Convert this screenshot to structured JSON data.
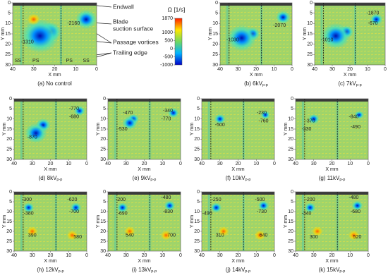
{
  "chart_data": [
    {
      "type": "contour",
      "caption": "(a)  No control",
      "xlabel": "X mm",
      "ylabel": "Y mm",
      "xlim": [
        40,
        0
      ],
      "ylim": [
        30,
        0
      ],
      "xticks": [
        40,
        30,
        20,
        10,
        0
      ],
      "yticks": [
        0,
        5,
        10,
        15,
        20,
        25,
        30
      ],
      "labels": [
        -2160,
        -1310
      ]
    },
    {
      "type": "contour",
      "caption": "(b)  6kV",
      "caption_sub": "p-p",
      "xlabel": "X mm",
      "ylabel": "Y mm",
      "xlim": [
        40,
        0
      ],
      "ylim": [
        30,
        0
      ],
      "xticks": [
        40,
        30,
        20,
        10,
        0
      ],
      "yticks": [
        0,
        5,
        10,
        15,
        20,
        25,
        30
      ],
      "labels": [
        -2070,
        -1030
      ]
    },
    {
      "type": "contour",
      "caption": "(c)  7kV",
      "caption_sub": "p-p",
      "xlabel": "X mm",
      "ylabel": "Y mm",
      "xlim": [
        40,
        0
      ],
      "ylim": [
        30,
        0
      ],
      "xticks": [
        40,
        30,
        20,
        10,
        0
      ],
      "yticks": [
        0,
        5,
        10,
        15,
        20,
        25,
        30
      ],
      "labels": [
        -1870,
        -670,
        -1010
      ]
    },
    {
      "type": "contour",
      "caption": "(d)  8kV",
      "caption_sub": "p-p",
      "xlabel": "X mm",
      "ylabel": "Y mm",
      "xlim": [
        40,
        0
      ],
      "ylim": [
        30,
        0
      ],
      "xticks": [
        40,
        30,
        20,
        10,
        0
      ],
      "yticks": [
        0,
        5,
        10,
        15,
        20,
        25,
        30
      ],
      "labels": [
        -770,
        -680,
        -870
      ]
    },
    {
      "type": "contour",
      "caption": "(e)  9kV",
      "caption_sub": "p-p",
      "xlabel": "X mm",
      "ylabel": "Y mm",
      "xlim": [
        40,
        0
      ],
      "ylim": [
        30,
        0
      ],
      "xticks": [
        40,
        30,
        20,
        10,
        0
      ],
      "yticks": [
        0,
        5,
        10,
        15,
        20,
        25,
        30
      ],
      "labels": [
        -340,
        -470,
        -770,
        -530
      ]
    },
    {
      "type": "contour",
      "caption": "(f)  10kV",
      "caption_sub": "p-p",
      "xlabel": "X mm",
      "ylabel": "Y mm",
      "xlim": [
        40,
        0
      ],
      "ylim": [
        30,
        0
      ],
      "xticks": [
        40,
        30,
        20,
        10,
        0
      ],
      "yticks": [
        0,
        5,
        10,
        15,
        20,
        25,
        30
      ],
      "labels": [
        -230,
        -760,
        -500
      ]
    },
    {
      "type": "contour",
      "caption": "(g)  11kV",
      "caption_sub": "p-p",
      "xlabel": "X mm",
      "ylabel": "Y mm",
      "xlim": [
        40,
        0
      ],
      "ylim": [
        30,
        0
      ],
      "xticks": [
        40,
        30,
        20,
        10,
        0
      ],
      "yticks": [
        0,
        5,
        10,
        15,
        20,
        25,
        30
      ],
      "labels": [
        -370,
        -840,
        -330,
        -490
      ]
    },
    {
      "type": "contour",
      "caption": "(h)  12kV",
      "caption_sub": "p-p",
      "xlabel": "X mm",
      "ylabel": "Y mm",
      "xlim": [
        40,
        0
      ],
      "ylim": [
        30,
        0
      ],
      "xticks": [
        40,
        30,
        20,
        10,
        0
      ],
      "yticks": [
        0,
        5,
        10,
        15,
        20,
        25,
        30
      ],
      "labels": [
        -300,
        -620,
        -380,
        -700,
        390,
        580
      ]
    },
    {
      "type": "contour",
      "caption": "(i)  13kV",
      "caption_sub": "p-p",
      "xlabel": "X mm",
      "ylabel": "Y mm",
      "xlim": [
        40,
        0
      ],
      "ylim": [
        30,
        0
      ],
      "xticks": [
        40,
        30,
        20,
        10,
        0
      ],
      "yticks": [
        0,
        5,
        10,
        15,
        20,
        25,
        30
      ],
      "labels": [
        -200,
        -480,
        -690,
        -830,
        540,
        700
      ]
    },
    {
      "type": "contour",
      "caption": "(j)  14kV",
      "caption_sub": "p-p",
      "xlabel": "X mm",
      "ylabel": "Y mm",
      "xlim": [
        40,
        0
      ],
      "ylim": [
        30,
        0
      ],
      "xticks": [
        40,
        30,
        20,
        10,
        0
      ],
      "yticks": [
        0,
        5,
        10,
        15,
        20,
        25,
        30
      ],
      "labels": [
        -250,
        -500,
        -490,
        -730,
        310,
        640
      ]
    },
    {
      "type": "contour",
      "caption": "(k)  15kV",
      "caption_sub": "p-p",
      "xlabel": "X mm",
      "ylabel": "Y mm",
      "xlim": [
        40,
        0
      ],
      "ylim": [
        30,
        0
      ],
      "xticks": [
        40,
        30,
        20,
        10,
        0
      ],
      "yticks": [
        0,
        5,
        10,
        15,
        20,
        25,
        30
      ],
      "labels": [
        -200,
        -480,
        -340,
        -680,
        300,
        520
      ]
    }
  ],
  "colorbar": {
    "title": "Ω [1/s]",
    "lim": [
      -1000,
      1870
    ],
    "ticks": [
      1870,
      1000,
      500,
      0,
      -500,
      -1000
    ],
    "colors": [
      "#0000c8",
      "#00b4ff",
      "#70d860",
      "#ffe600",
      "#ff1e00"
    ]
  },
  "legend": [
    "Endwall",
    [
      "Blade",
      "suction surface"
    ],
    "Passage vortices",
    "Trailing edge"
  ],
  "passage_labels": [
    "SS",
    "PS",
    "PS",
    "SS"
  ]
}
